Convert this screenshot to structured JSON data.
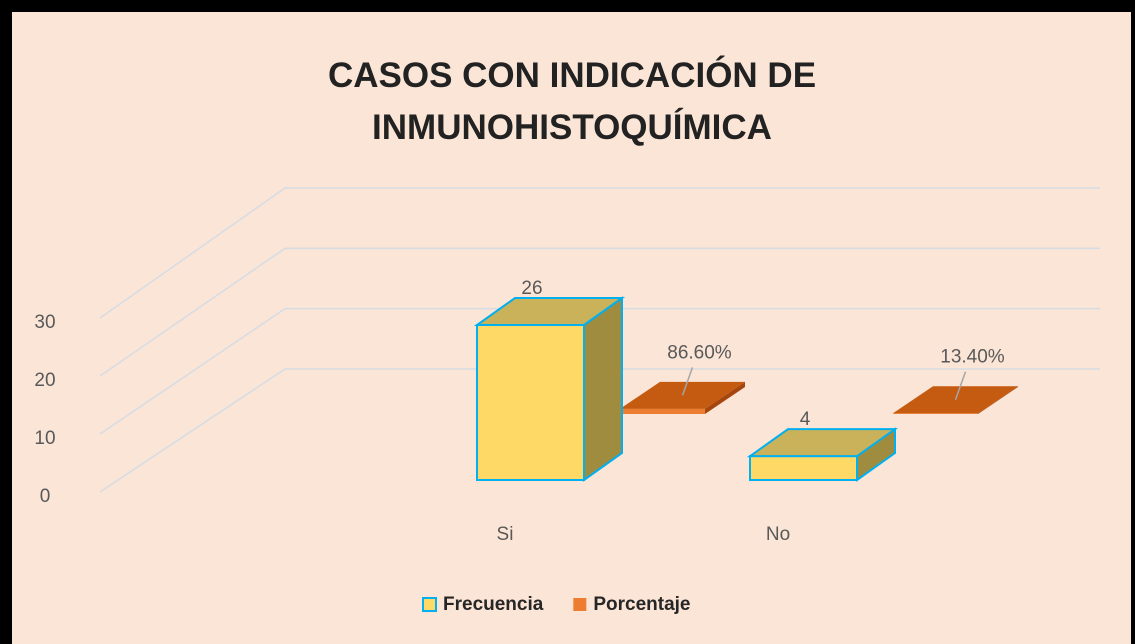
{
  "chart_data": {
    "type": "bar3d",
    "title": "CASOS CON INDICACIÓN DE INMUNOHISTOQUÍMICA",
    "categories": [
      "Si",
      "No"
    ],
    "series": [
      {
        "name": "Frecuencia",
        "color": "#ffd966",
        "values": [
          26,
          4
        ]
      },
      {
        "name": "Porcentaje",
        "color": "#ed7d31",
        "values": [
          0.866,
          0.134
        ],
        "value_labels": [
          "86.60%",
          "13.40%"
        ]
      }
    ],
    "ylim": [
      0,
      30
    ],
    "yticks": [
      0,
      10,
      20,
      30
    ],
    "grid": true,
    "legend": "bottom"
  }
}
